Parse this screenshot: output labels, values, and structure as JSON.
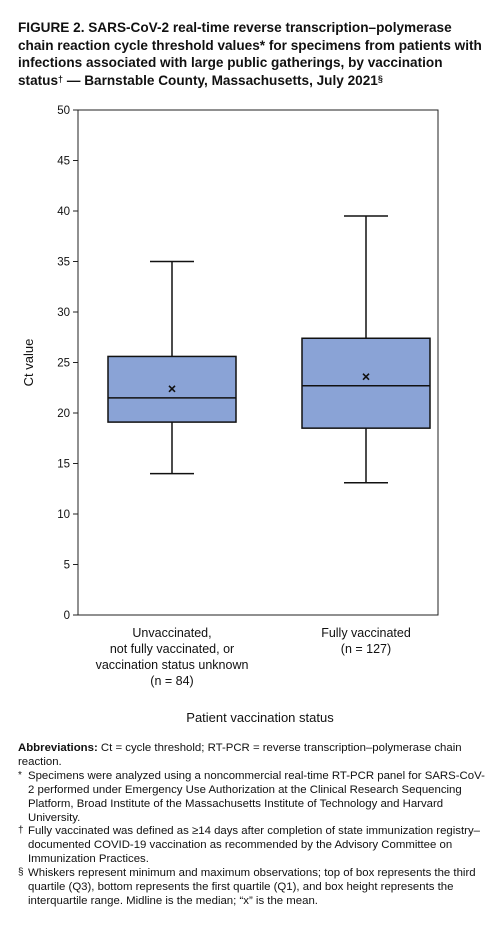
{
  "figure": {
    "title_main": "FIGURE 2. SARS-CoV-2 real-time reverse transcription–polymerase chain reaction cycle threshold values* for specimens from patients with infections associated with large public gatherings, by vaccination status",
    "title_mark": "†",
    "title_tail": " — Barnstable County, Massachusetts, July 2021",
    "title_end_mark": "§"
  },
  "chart_data": {
    "type": "box",
    "ylabel": "Ct value",
    "xlabel": "Patient vaccination status",
    "ylim": [
      0,
      50
    ],
    "yticks": [
      0,
      5,
      10,
      15,
      20,
      25,
      30,
      35,
      40,
      45,
      50
    ],
    "box_color": "#8aa3d6",
    "groups": [
      {
        "label_lines": [
          "Unvaccinated,",
          "not fully vaccinated, or",
          "vaccination status unknown",
          "(n = 84)"
        ],
        "min": 14.0,
        "q1": 19.1,
        "median": 21.5,
        "q3": 25.6,
        "max": 35.0,
        "mean": 22.4
      },
      {
        "label_lines": [
          "Fully vaccinated",
          "(n = 127)"
        ],
        "min": 13.1,
        "q1": 18.5,
        "median": 22.7,
        "q3": 27.4,
        "max": 39.5,
        "mean": 23.6
      }
    ]
  },
  "footnotes": {
    "abbr_label": "Abbreviations:",
    "abbr_text": " Ct = cycle threshold; RT-PCR = reverse transcription–polymerase chain reaction.",
    "items": [
      {
        "mark": "*",
        "text": "Specimens were analyzed using a noncommercial real-time RT-PCR panel for SARS-CoV-2 performed under Emergency Use Authorization at the Clinical Research Sequencing Platform, Broad Institute of the Massachusetts Institute of Technology and Harvard University."
      },
      {
        "mark": "†",
        "text": "Fully vaccinated was defined as ≥14 days after completion of state immunization registry–documented COVID-19 vaccination as recommended by the Advisory Committee on Immunization Practices."
      },
      {
        "mark": "§",
        "text": "Whiskers represent minimum and maximum observations; top of box represents the third quartile (Q3), bottom represents the first quartile (Q1), and box height represents the interquartile range. Midline is the median; “x” is the mean."
      }
    ]
  }
}
